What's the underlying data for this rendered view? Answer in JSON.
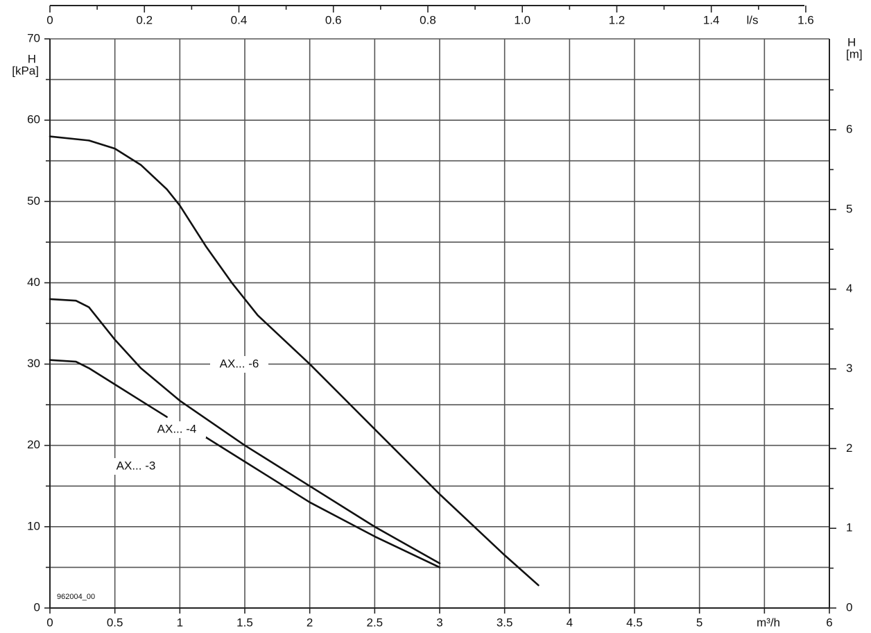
{
  "chart_data": {
    "type": "line",
    "xlabel": "m³/h",
    "x2label": "l/s",
    "ylabel": {
      "symbol": "H",
      "unit": "[kPa]"
    },
    "y2label": {
      "symbol": "H",
      "unit": "[m]"
    },
    "annotation": "962004_00",
    "xlim": [
      0,
      6
    ],
    "xticks": [
      0,
      0.5,
      1,
      1.5,
      2,
      2.5,
      3,
      3.5,
      4,
      4.5,
      5,
      6
    ],
    "xminor": [
      5.5
    ],
    "x2lim": [
      0,
      1.65
    ],
    "x2ticks": [
      0,
      0.2,
      0.4,
      0.6,
      0.8,
      {
        "value": 1,
        "label": "1.0"
      },
      1.2,
      1.4,
      1.6
    ],
    "x2minor": [
      0.1,
      0.3,
      0.5,
      0.7,
      0.9,
      1.1,
      1.3,
      1.5
    ],
    "ylim": [
      0,
      70
    ],
    "yticks": [
      0,
      10,
      20,
      30,
      40,
      50,
      60,
      70
    ],
    "yminor": [
      5,
      15,
      25,
      35,
      45,
      55,
      65
    ],
    "y2lim": [
      0,
      7.14
    ],
    "y2ticks": [
      0,
      1,
      2,
      3,
      4,
      5,
      6
    ],
    "y2minor": [
      0.5,
      1.5,
      2.5,
      3.5,
      4.5,
      5.5,
      6.5
    ],
    "grid": true,
    "series": [
      {
        "name": "AX... -6",
        "color": "#111111",
        "x": [
          0,
          0.3,
          0.5,
          0.7,
          0.9,
          1,
          1.2,
          1.4,
          1.6,
          1.8,
          2,
          2.5,
          3,
          3.5,
          3.76
        ],
        "values": [
          58,
          57.5,
          56.5,
          54.5,
          51.5,
          49.5,
          44.5,
          40,
          36,
          33,
          30,
          22,
          14,
          6.5,
          2.8
        ]
      },
      {
        "name": "AX... -4",
        "color": "#111111",
        "x": [
          0,
          0.2,
          0.3,
          0.5,
          0.7,
          1,
          1.5,
          2,
          2.5,
          3
        ],
        "values": [
          38,
          37.8,
          37,
          33,
          29.5,
          25.5,
          20,
          15,
          10,
          5.5
        ]
      },
      {
        "name": "AX... -3",
        "color": "#111111",
        "x": [
          0,
          0.2,
          0.3,
          0.5,
          0.7,
          0.9,
          null,
          1.2,
          1.5,
          2,
          2.5,
          3
        ],
        "values": [
          30.5,
          30.3,
          29.5,
          27.5,
          25.5,
          23.5,
          null,
          21,
          18,
          13,
          8.8,
          5
        ]
      }
    ]
  }
}
